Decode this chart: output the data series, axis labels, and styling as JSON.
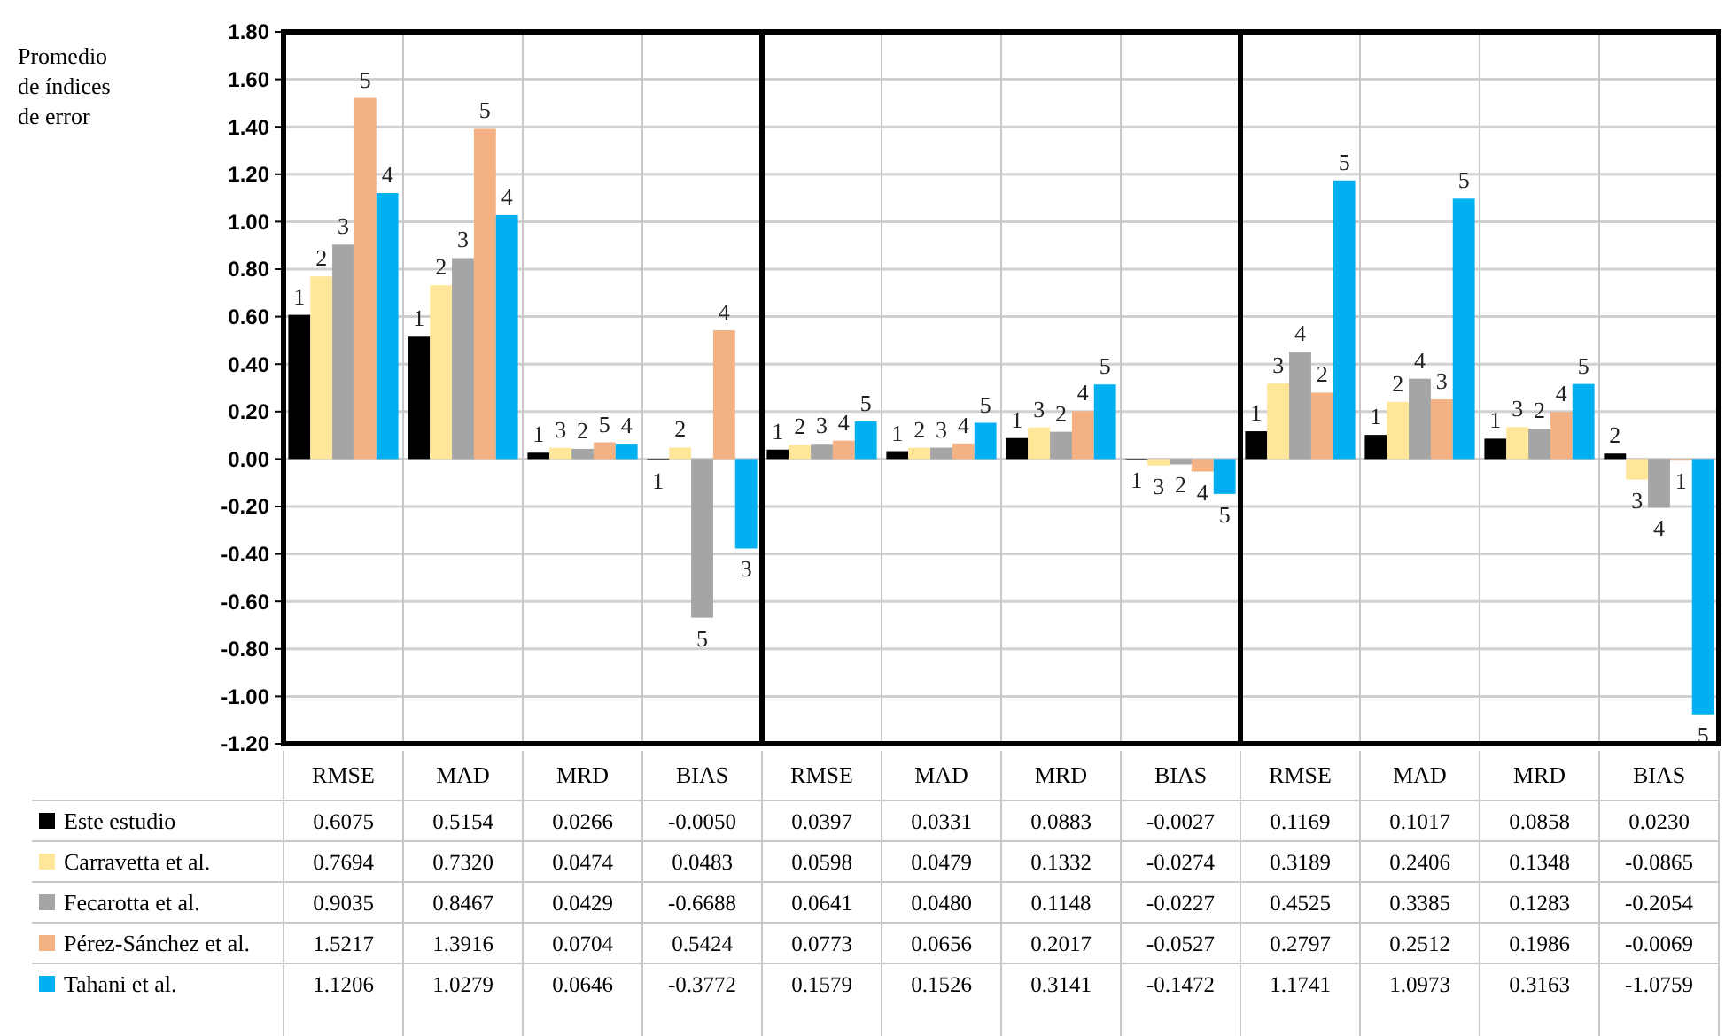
{
  "chart_data": {
    "type": "bar",
    "ylabel": "Promedio de índices de error",
    "categories": [
      "RMSE",
      "MAD",
      "MRD",
      "BIAS",
      "RMSE",
      "MAD",
      "MRD",
      "BIAS",
      "RMSE",
      "MAD",
      "MRD",
      "BIAS"
    ],
    "series": [
      {
        "name": "Este estudio",
        "color": "#000000",
        "values": [
          0.6075,
          0.5154,
          0.0266,
          -0.005,
          0.0397,
          0.0331,
          0.0883,
          -0.0027,
          0.1169,
          0.1017,
          0.0858,
          0.023
        ],
        "value_labels": [
          "0.6075",
          "0.5154",
          "0.0266",
          "-0.0050",
          "0.0397",
          "0.0331",
          "0.0883",
          "-0.0027",
          "0.1169",
          "0.1017",
          "0.0858",
          "0.0230"
        ]
      },
      {
        "name": "Carravetta et al.",
        "color": "#ffe699",
        "values": [
          0.7694,
          0.732,
          0.0474,
          0.0483,
          0.0598,
          0.0479,
          0.1332,
          -0.0274,
          0.3189,
          0.2406,
          0.1348,
          -0.0865
        ],
        "value_labels": [
          "0.7694",
          "0.7320",
          "0.0474",
          "0.0483",
          "0.0598",
          "0.0479",
          "0.1332",
          "-0.0274",
          "0.3189",
          "0.2406",
          "0.1348",
          "-0.0865"
        ]
      },
      {
        "name": "Fecarotta et al.",
        "color": "#a5a5a5",
        "values": [
          0.9035,
          0.8467,
          0.0429,
          -0.6688,
          0.0641,
          0.048,
          0.1148,
          -0.0227,
          0.4525,
          0.3385,
          0.1283,
          -0.2054
        ],
        "value_labels": [
          "0.9035",
          "0.8467",
          "0.0429",
          "-0.6688",
          "0.0641",
          "0.0480",
          "0.1148",
          "-0.0227",
          "0.4525",
          "0.3385",
          "0.1283",
          "-0.2054"
        ]
      },
      {
        "name": "Pérez-Sánchez et al.",
        "color": "#f4b183",
        "values": [
          1.5217,
          1.3916,
          0.0704,
          0.5424,
          0.0773,
          0.0656,
          0.2017,
          -0.0527,
          0.2797,
          0.2512,
          0.1986,
          -0.0069
        ],
        "value_labels": [
          "1.5217",
          "1.3916",
          "0.0704",
          "0.5424",
          "0.0773",
          "0.0656",
          "0.2017",
          "-0.0527",
          "0.2797",
          "0.2512",
          "0.1986",
          "-0.0069"
        ]
      },
      {
        "name": "Tahani et al.",
        "color": "#00b0f0",
        "values": [
          1.1206,
          1.0279,
          0.0646,
          -0.3772,
          0.1579,
          0.1526,
          0.3141,
          -0.1472,
          1.1741,
          1.0973,
          0.3163,
          -1.0759
        ],
        "value_labels": [
          "1.1206",
          "1.0279",
          "0.0646",
          "-0.3772",
          "0.1579",
          "0.1526",
          "0.3141",
          "-0.1472",
          "1.1741",
          "1.0973",
          "0.3163",
          "-1.0759"
        ]
      }
    ],
    "annotations": [
      "1",
      "1",
      "1",
      "1",
      "1",
      "1",
      "1",
      "1",
      "1",
      "1",
      "1",
      "2",
      "2",
      "2",
      "3",
      "2",
      "2",
      "2",
      "3",
      "3",
      "3",
      "2",
      "3",
      "3",
      "3",
      "3",
      "2",
      "5",
      "3",
      "3",
      "2",
      "2",
      "4",
      "4",
      "2",
      "4",
      "5",
      "5",
      "5",
      "4",
      "4",
      "4",
      "4",
      "4",
      "2",
      "3",
      "4",
      "1",
      "4",
      "4",
      "4",
      "3",
      "5",
      "5",
      "5",
      "5",
      "5",
      "5",
      "5",
      "5"
    ],
    "ylim": [
      -1.2,
      1.8
    ],
    "yticks": [
      {
        "value": -1.2,
        "label": "-1.20"
      },
      {
        "value": -1,
        "label": "-1.00"
      },
      {
        "value": -0.8,
        "label": "-0.80"
      },
      {
        "value": -0.6,
        "label": "-0.60"
      },
      {
        "value": -0.4,
        "label": "-0.40"
      },
      {
        "value": -0.2,
        "label": "-0.20"
      },
      {
        "value": 0,
        "label": "0.00"
      },
      {
        "value": 0.2,
        "label": "0.20"
      },
      {
        "value": 0.4,
        "label": "0.40"
      },
      {
        "value": 0.6,
        "label": "0.60"
      },
      {
        "value": 0.8,
        "label": "0.80"
      },
      {
        "value": 1,
        "label": "1.00"
      },
      {
        "value": 1.2,
        "label": "1.20"
      },
      {
        "value": 1.4,
        "label": "1.40"
      },
      {
        "value": 1.6,
        "label": "1.60"
      },
      {
        "value": 1.8,
        "label": "1.80"
      }
    ],
    "grid": "y",
    "legend": "bottom",
    "data_labels": true
  }
}
